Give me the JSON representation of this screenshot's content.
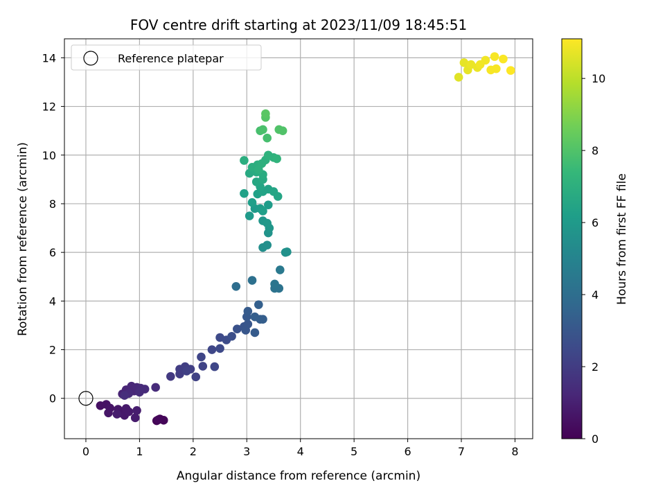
{
  "chart_data": {
    "type": "scatter",
    "title": "FOV centre drift starting at 2023/11/09 18:45:51",
    "xlabel": "Angular distance from reference (arcmin)",
    "ylabel": "Rotation from reference (arcmin)",
    "xlim": [
      -0.4,
      8.33
    ],
    "ylim": [
      -1.66,
      14.78
    ],
    "x_ticks": [
      0,
      1,
      2,
      3,
      4,
      5,
      6,
      7,
      8
    ],
    "y_ticks": [
      0,
      2,
      4,
      6,
      8,
      10,
      12,
      14
    ],
    "grid": true,
    "legend": {
      "placement": "top-left",
      "entries": [
        "Reference platepar"
      ]
    },
    "reference_point": {
      "x": 0,
      "y": 0,
      "marker": "open-circle"
    },
    "colorbar": {
      "label": "Hours from first FF file",
      "range": [
        0,
        11.1
      ],
      "ticks": [
        0,
        2,
        4,
        6,
        8,
        10
      ],
      "colormap": "viridis",
      "colors": [
        "#440154",
        "#482878",
        "#3e4989",
        "#31688e",
        "#26828e",
        "#1f9e89",
        "#35b779",
        "#6ece58",
        "#b5de2b",
        "#fde725"
      ]
    },
    "points": [
      {
        "x": 1.32,
        "y": -0.92,
        "c": 0.05
      },
      {
        "x": 1.38,
        "y": -0.85,
        "c": 0.1
      },
      {
        "x": 1.45,
        "y": -0.9,
        "c": 0.15
      },
      {
        "x": 1.35,
        "y": -0.88,
        "c": 0.2
      },
      {
        "x": 0.27,
        "y": -0.3,
        "c": 0.5
      },
      {
        "x": 0.38,
        "y": -0.25,
        "c": 0.55
      },
      {
        "x": 0.45,
        "y": -0.4,
        "c": 0.6
      },
      {
        "x": 0.42,
        "y": -0.6,
        "c": 0.65
      },
      {
        "x": 0.6,
        "y": -0.45,
        "c": 0.7
      },
      {
        "x": 0.65,
        "y": -0.6,
        "c": 0.7
      },
      {
        "x": 0.72,
        "y": -0.7,
        "c": 0.75
      },
      {
        "x": 0.8,
        "y": -0.55,
        "c": 0.8
      },
      {
        "x": 0.75,
        "y": -0.42,
        "c": 0.8
      },
      {
        "x": 0.92,
        "y": -0.8,
        "c": 0.85
      },
      {
        "x": 0.95,
        "y": -0.5,
        "c": 0.9
      },
      {
        "x": 0.58,
        "y": -0.65,
        "c": 0.9
      },
      {
        "x": 0.68,
        "y": 0.18,
        "c": 1.1
      },
      {
        "x": 0.75,
        "y": 0.35,
        "c": 1.15
      },
      {
        "x": 0.85,
        "y": 0.5,
        "c": 1.2
      },
      {
        "x": 0.9,
        "y": 0.3,
        "c": 1.2
      },
      {
        "x": 0.95,
        "y": 0.45,
        "c": 1.25
      },
      {
        "x": 1.02,
        "y": 0.42,
        "c": 1.3
      },
      {
        "x": 0.8,
        "y": 0.2,
        "c": 1.3
      },
      {
        "x": 1.1,
        "y": 0.38,
        "c": 1.35
      },
      {
        "x": 1.3,
        "y": 0.45,
        "c": 1.4
      },
      {
        "x": 1.0,
        "y": 0.25,
        "c": 1.4
      },
      {
        "x": 0.72,
        "y": 0.12,
        "c": 1.45
      },
      {
        "x": 1.58,
        "y": 0.9,
        "c": 1.9
      },
      {
        "x": 1.75,
        "y": 1.0,
        "c": 2.0
      },
      {
        "x": 1.75,
        "y": 1.2,
        "c": 2.0
      },
      {
        "x": 1.85,
        "y": 1.3,
        "c": 2.05
      },
      {
        "x": 1.95,
        "y": 1.2,
        "c": 2.1
      },
      {
        "x": 1.88,
        "y": 1.12,
        "c": 2.15
      },
      {
        "x": 2.05,
        "y": 0.88,
        "c": 2.2
      },
      {
        "x": 2.18,
        "y": 1.32,
        "c": 2.25
      },
      {
        "x": 2.15,
        "y": 1.7,
        "c": 2.3
      },
      {
        "x": 2.35,
        "y": 2.0,
        "c": 2.4
      },
      {
        "x": 2.4,
        "y": 1.3,
        "c": 2.4
      },
      {
        "x": 2.5,
        "y": 2.05,
        "c": 2.5
      },
      {
        "x": 2.5,
        "y": 2.5,
        "c": 2.5
      },
      {
        "x": 2.62,
        "y": 2.4,
        "c": 2.6
      },
      {
        "x": 2.72,
        "y": 2.55,
        "c": 2.7
      },
      {
        "x": 2.82,
        "y": 2.85,
        "c": 2.8
      },
      {
        "x": 2.95,
        "y": 2.95,
        "c": 2.9
      },
      {
        "x": 2.98,
        "y": 2.8,
        "c": 3.0
      },
      {
        "x": 3.02,
        "y": 3.05,
        "c": 3.0
      },
      {
        "x": 3.0,
        "y": 3.35,
        "c": 3.1
      },
      {
        "x": 3.02,
        "y": 3.58,
        "c": 3.2
      },
      {
        "x": 3.15,
        "y": 2.7,
        "c": 3.2
      },
      {
        "x": 3.15,
        "y": 3.35,
        "c": 3.3
      },
      {
        "x": 3.25,
        "y": 3.25,
        "c": 3.3
      },
      {
        "x": 3.3,
        "y": 3.25,
        "c": 3.3
      },
      {
        "x": 3.22,
        "y": 3.85,
        "c": 3.4
      },
      {
        "x": 2.8,
        "y": 4.6,
        "c": 4.0
      },
      {
        "x": 3.1,
        "y": 4.85,
        "c": 4.1
      },
      {
        "x": 3.52,
        "y": 4.52,
        "c": 4.2
      },
      {
        "x": 3.6,
        "y": 4.52,
        "c": 4.2
      },
      {
        "x": 3.52,
        "y": 4.7,
        "c": 4.3
      },
      {
        "x": 3.62,
        "y": 5.28,
        "c": 4.5
      },
      {
        "x": 3.3,
        "y": 6.2,
        "c": 5.5
      },
      {
        "x": 3.38,
        "y": 6.3,
        "c": 5.5
      },
      {
        "x": 3.72,
        "y": 6.0,
        "c": 5.6
      },
      {
        "x": 3.75,
        "y": 6.02,
        "c": 5.6
      },
      {
        "x": 3.4,
        "y": 6.8,
        "c": 5.7
      },
      {
        "x": 3.42,
        "y": 7.0,
        "c": 5.8
      },
      {
        "x": 3.3,
        "y": 7.3,
        "c": 5.8
      },
      {
        "x": 3.38,
        "y": 7.2,
        "c": 5.9
      },
      {
        "x": 3.05,
        "y": 7.5,
        "c": 6.0
      },
      {
        "x": 3.15,
        "y": 7.8,
        "c": 6.0
      },
      {
        "x": 3.25,
        "y": 7.8,
        "c": 6.1
      },
      {
        "x": 3.4,
        "y": 7.95,
        "c": 6.1
      },
      {
        "x": 3.3,
        "y": 7.7,
        "c": 6.2
      },
      {
        "x": 3.1,
        "y": 8.05,
        "c": 6.2
      },
      {
        "x": 2.95,
        "y": 8.42,
        "c": 6.3
      },
      {
        "x": 3.2,
        "y": 8.4,
        "c": 6.3
      },
      {
        "x": 3.3,
        "y": 8.5,
        "c": 6.4
      },
      {
        "x": 3.4,
        "y": 8.6,
        "c": 6.4
      },
      {
        "x": 3.5,
        "y": 8.5,
        "c": 6.5
      },
      {
        "x": 3.58,
        "y": 8.3,
        "c": 6.5
      },
      {
        "x": 3.25,
        "y": 8.7,
        "c": 6.5
      },
      {
        "x": 3.18,
        "y": 8.9,
        "c": 6.6
      },
      {
        "x": 3.3,
        "y": 9.0,
        "c": 6.7
      },
      {
        "x": 3.05,
        "y": 9.25,
        "c": 6.7
      },
      {
        "x": 3.18,
        "y": 9.3,
        "c": 6.8
      },
      {
        "x": 3.3,
        "y": 9.2,
        "c": 6.8
      },
      {
        "x": 3.1,
        "y": 9.5,
        "c": 6.9
      },
      {
        "x": 3.2,
        "y": 9.6,
        "c": 6.9
      },
      {
        "x": 2.95,
        "y": 9.78,
        "c": 6.9
      },
      {
        "x": 3.28,
        "y": 9.65,
        "c": 7.0
      },
      {
        "x": 3.35,
        "y": 9.8,
        "c": 7.0
      },
      {
        "x": 3.4,
        "y": 10.0,
        "c": 7.1
      },
      {
        "x": 3.5,
        "y": 9.9,
        "c": 7.1
      },
      {
        "x": 3.56,
        "y": 9.85,
        "c": 7.2
      },
      {
        "x": 3.22,
        "y": 9.4,
        "c": 7.0
      },
      {
        "x": 3.38,
        "y": 10.7,
        "c": 7.8
      },
      {
        "x": 3.25,
        "y": 11.0,
        "c": 7.8
      },
      {
        "x": 3.3,
        "y": 11.05,
        "c": 7.9
      },
      {
        "x": 3.6,
        "y": 11.05,
        "c": 8.0
      },
      {
        "x": 3.67,
        "y": 11.0,
        "c": 8.0
      },
      {
        "x": 3.35,
        "y": 11.55,
        "c": 8.1
      },
      {
        "x": 3.35,
        "y": 11.7,
        "c": 8.2
      },
      {
        "x": 6.95,
        "y": 13.2,
        "c": 10.6
      },
      {
        "x": 7.05,
        "y": 13.8,
        "c": 10.7
      },
      {
        "x": 7.12,
        "y": 13.5,
        "c": 10.7
      },
      {
        "x": 7.18,
        "y": 13.72,
        "c": 10.8
      },
      {
        "x": 7.3,
        "y": 13.6,
        "c": 10.8
      },
      {
        "x": 7.35,
        "y": 13.72,
        "c": 10.9
      },
      {
        "x": 7.45,
        "y": 13.9,
        "c": 10.9
      },
      {
        "x": 7.55,
        "y": 13.5,
        "c": 11.0
      },
      {
        "x": 7.62,
        "y": 14.05,
        "c": 11.0
      },
      {
        "x": 7.65,
        "y": 13.55,
        "c": 11.0
      },
      {
        "x": 7.78,
        "y": 13.95,
        "c": 11.05
      },
      {
        "x": 7.92,
        "y": 13.48,
        "c": 11.1
      }
    ]
  }
}
